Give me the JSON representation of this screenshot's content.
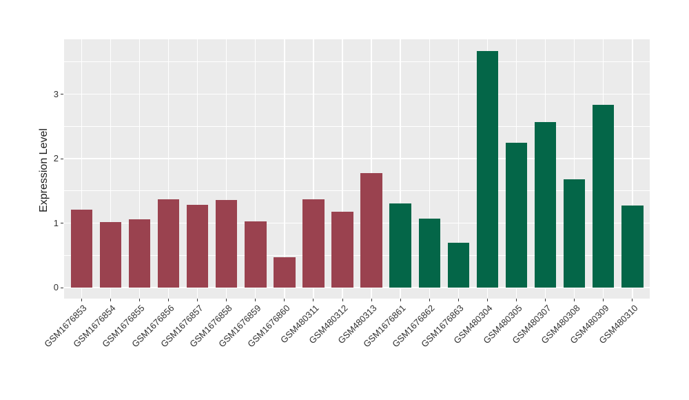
{
  "chart_data": {
    "type": "bar",
    "title": "",
    "xlabel": "",
    "ylabel": "Expression Level",
    "ylim": [
      0,
      3.85
    ],
    "yticks": [
      0,
      1,
      2,
      3
    ],
    "yticks_minor": [
      0.5,
      1.5,
      2.5,
      3.5
    ],
    "grid": true,
    "legend": false,
    "panel_bg": "#EBEBEB",
    "grid_color": "#FFFFFF",
    "axis_text_color": "#303030",
    "tick_color": "#333333",
    "group_colors": {
      "group1": "#9A424F",
      "group2": "#046648"
    },
    "categories": [
      "GSM1676853",
      "GSM1676854",
      "GSM1676855",
      "GSM1676856",
      "GSM1676857",
      "GSM1676858",
      "GSM1676859",
      "GSM1676860",
      "GSM480311",
      "GSM480312",
      "GSM480313",
      "GSM1676861",
      "GSM1676862",
      "GSM1676863",
      "GSM480304",
      "GSM480305",
      "GSM480307",
      "GSM480308",
      "GSM480309",
      "GSM480310"
    ],
    "bars": [
      {
        "label": "GSM1676853",
        "value": 1.21,
        "group": "group1"
      },
      {
        "label": "GSM1676854",
        "value": 1.02,
        "group": "group1"
      },
      {
        "label": "GSM1676855",
        "value": 1.06,
        "group": "group1"
      },
      {
        "label": "GSM1676856",
        "value": 1.37,
        "group": "group1"
      },
      {
        "label": "GSM1676857",
        "value": 1.28,
        "group": "group1"
      },
      {
        "label": "GSM1676858",
        "value": 1.36,
        "group": "group1"
      },
      {
        "label": "GSM1676859",
        "value": 1.03,
        "group": "group1"
      },
      {
        "label": "GSM1676860",
        "value": 0.47,
        "group": "group1"
      },
      {
        "label": "GSM480311",
        "value": 1.37,
        "group": "group1"
      },
      {
        "label": "GSM480312",
        "value": 1.18,
        "group": "group1"
      },
      {
        "label": "GSM480313",
        "value": 1.78,
        "group": "group1"
      },
      {
        "label": "GSM1676861",
        "value": 1.31,
        "group": "group2"
      },
      {
        "label": "GSM1676862",
        "value": 1.07,
        "group": "group2"
      },
      {
        "label": "GSM1676863",
        "value": 0.7,
        "group": "group2"
      },
      {
        "label": "GSM480304",
        "value": 3.67,
        "group": "group2"
      },
      {
        "label": "GSM480305",
        "value": 2.25,
        "group": "group2"
      },
      {
        "label": "GSM480307",
        "value": 2.57,
        "group": "group2"
      },
      {
        "label": "GSM480308",
        "value": 1.68,
        "group": "group2"
      },
      {
        "label": "GSM480309",
        "value": 2.83,
        "group": "group2"
      },
      {
        "label": "GSM480310",
        "value": 1.27,
        "group": "group2"
      }
    ]
  }
}
